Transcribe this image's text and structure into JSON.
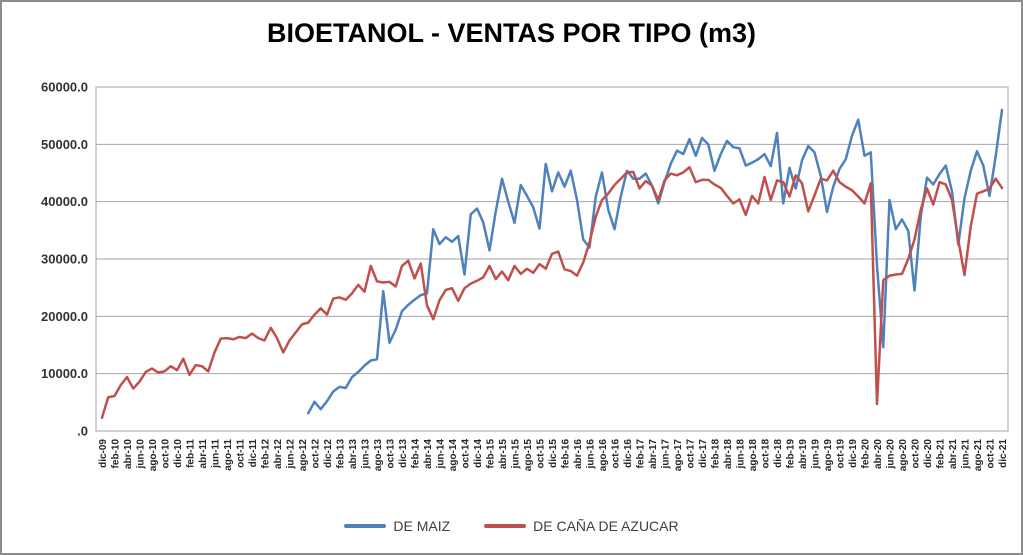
{
  "title": "BIOETANOL - VENTAS POR TIPO (m3)",
  "legend": [
    {
      "label": "DE MAIZ",
      "color": "#4F81BD"
    },
    {
      "label": "DE CAÑA DE AZUCAR",
      "color": "#C0504D"
    }
  ],
  "y_axis": {
    "labels": [
      "60000.0",
      "50000.0",
      "40000.0",
      "30000.0",
      "20000.0",
      "10000.0",
      ".0"
    ],
    "values": [
      60000,
      50000,
      40000,
      30000,
      20000,
      10000,
      0
    ]
  },
  "chart_data": {
    "type": "line",
    "title": "BIOETANOL - VENTAS POR TIPO (m3)",
    "xlabel": "",
    "ylabel": "",
    "ylim": [
      0,
      60000
    ],
    "y_tick_step": 10000,
    "grid": true,
    "legend_position": "bottom",
    "x_monthly": true,
    "x_start": "dic-09",
    "x_end": "dic-21",
    "x_tick_labels": [
      "dic-09",
      "feb-10",
      "abr-10",
      "jun-10",
      "ago-10",
      "oct-10",
      "dic-10",
      "feb-11",
      "abr-11",
      "jun-11",
      "ago-11",
      "oct-11",
      "dic-11",
      "feb-12",
      "abr-12",
      "jun-12",
      "ago-12",
      "oct-12",
      "dic-12",
      "feb-13",
      "abr-13",
      "jun-13",
      "ago-13",
      "oct-13",
      "dic-13",
      "feb-14",
      "abr-14",
      "jun-14",
      "ago-14",
      "oct-14",
      "dic-14",
      "feb-15",
      "abr-15",
      "jun-15",
      "ago-15",
      "oct-15",
      "dic-15",
      "feb-16",
      "abr-16",
      "jun-16",
      "ago-16",
      "oct-16",
      "dic-16",
      "feb-17",
      "abr-17",
      "jun-17",
      "ago-17",
      "oct-17",
      "dic-17",
      "feb-18",
      "abr-18",
      "jun-18",
      "ago-18",
      "oct-18",
      "dic-18",
      "feb-19",
      "abr-19",
      "jun-19",
      "ago-19",
      "oct-19",
      "dic-19",
      "feb-20",
      "abr-20",
      "jun-20",
      "ago-20",
      "oct-20",
      "dic-20",
      "feb-21",
      "abr-21",
      "jun-21",
      "ago-21",
      "oct-21",
      "dic-21"
    ],
    "series": [
      {
        "name": "DE MAIZ",
        "color": "#4F81BD",
        "values": [
          null,
          null,
          null,
          null,
          null,
          null,
          null,
          null,
          null,
          null,
          null,
          null,
          null,
          null,
          null,
          null,
          null,
          null,
          null,
          null,
          null,
          null,
          null,
          null,
          null,
          null,
          null,
          null,
          null,
          null,
          null,
          null,
          null,
          3100,
          5100,
          3800,
          5200,
          6900,
          7700,
          7500,
          9400,
          10300,
          11400,
          12300,
          12500,
          24400,
          15400,
          17700,
          20900,
          22000,
          22900,
          23700,
          24000,
          35200,
          32600,
          33800,
          33000,
          34000,
          27300,
          37800,
          38800,
          36400,
          31500,
          38300,
          44000,
          40000,
          36300,
          42900,
          41000,
          39000,
          35300,
          46600,
          41800,
          45100,
          42600,
          45400,
          40300,
          33400,
          32000,
          40900,
          45100,
          38600,
          35200,
          40900,
          45400,
          44000,
          44000,
          44900,
          42800,
          39700,
          43400,
          46600,
          48900,
          48300,
          50900,
          48000,
          51100,
          50000,
          45400,
          48300,
          50600,
          49500,
          49300,
          46300,
          46800,
          47400,
          48300,
          46200,
          52000,
          39700,
          45900,
          42300,
          47200,
          49700,
          48600,
          44500,
          38200,
          42600,
          45700,
          47400,
          51500,
          54300,
          48000,
          48600,
          28900,
          14600,
          40300,
          35200,
          36900,
          34900,
          24500,
          37400,
          44200,
          43000,
          44800,
          46300,
          41800,
          32500,
          40600,
          45400,
          48800,
          46300,
          41000,
          48000,
          56000
        ]
      },
      {
        "name": "DE CAÑA DE AZUCAR",
        "color": "#C0504D",
        "values": [
          2300,
          5900,
          6100,
          8000,
          9400,
          7400,
          8600,
          10300,
          10900,
          10200,
          10400,
          11300,
          10600,
          12600,
          9800,
          11500,
          11300,
          10400,
          13700,
          16100,
          16200,
          16000,
          16400,
          16200,
          17000,
          16200,
          15800,
          18000,
          16200,
          13700,
          15800,
          17200,
          18600,
          18900,
          20300,
          21400,
          20300,
          23100,
          23300,
          22900,
          24000,
          25500,
          24300,
          28800,
          26100,
          25900,
          26000,
          25200,
          28800,
          29700,
          26600,
          29200,
          21900,
          19500,
          22800,
          24600,
          24900,
          22700,
          24900,
          25700,
          26200,
          26800,
          28800,
          26500,
          27800,
          26300,
          28800,
          27400,
          28300,
          27600,
          29100,
          28300,
          30900,
          31300,
          28200,
          27900,
          27100,
          29400,
          32900,
          37400,
          40300,
          41400,
          42900,
          44000,
          45100,
          45200,
          42300,
          43600,
          42800,
          40300,
          43700,
          44900,
          44600,
          45100,
          46000,
          43400,
          43800,
          43800,
          43000,
          42400,
          41000,
          39700,
          40400,
          37700,
          41000,
          39700,
          44300,
          40300,
          43700,
          43400,
          40900,
          44600,
          43200,
          38300,
          41100,
          44000,
          43700,
          45400,
          43400,
          42600,
          42000,
          40900,
          39700,
          43200,
          4700,
          26300,
          27100,
          27300,
          27400,
          30000,
          33400,
          38600,
          42300,
          39500,
          43400,
          43000,
          40300,
          33400,
          27200,
          35700,
          41400,
          41800,
          42300,
          44000,
          42400
        ]
      }
    ],
    "style": {
      "grid_color": "#A6A6A6",
      "axis_label_color": "#262626",
      "y_label_color": "#333333",
      "background": "#ffffff",
      "border_color": "#8C8C8C"
    }
  }
}
